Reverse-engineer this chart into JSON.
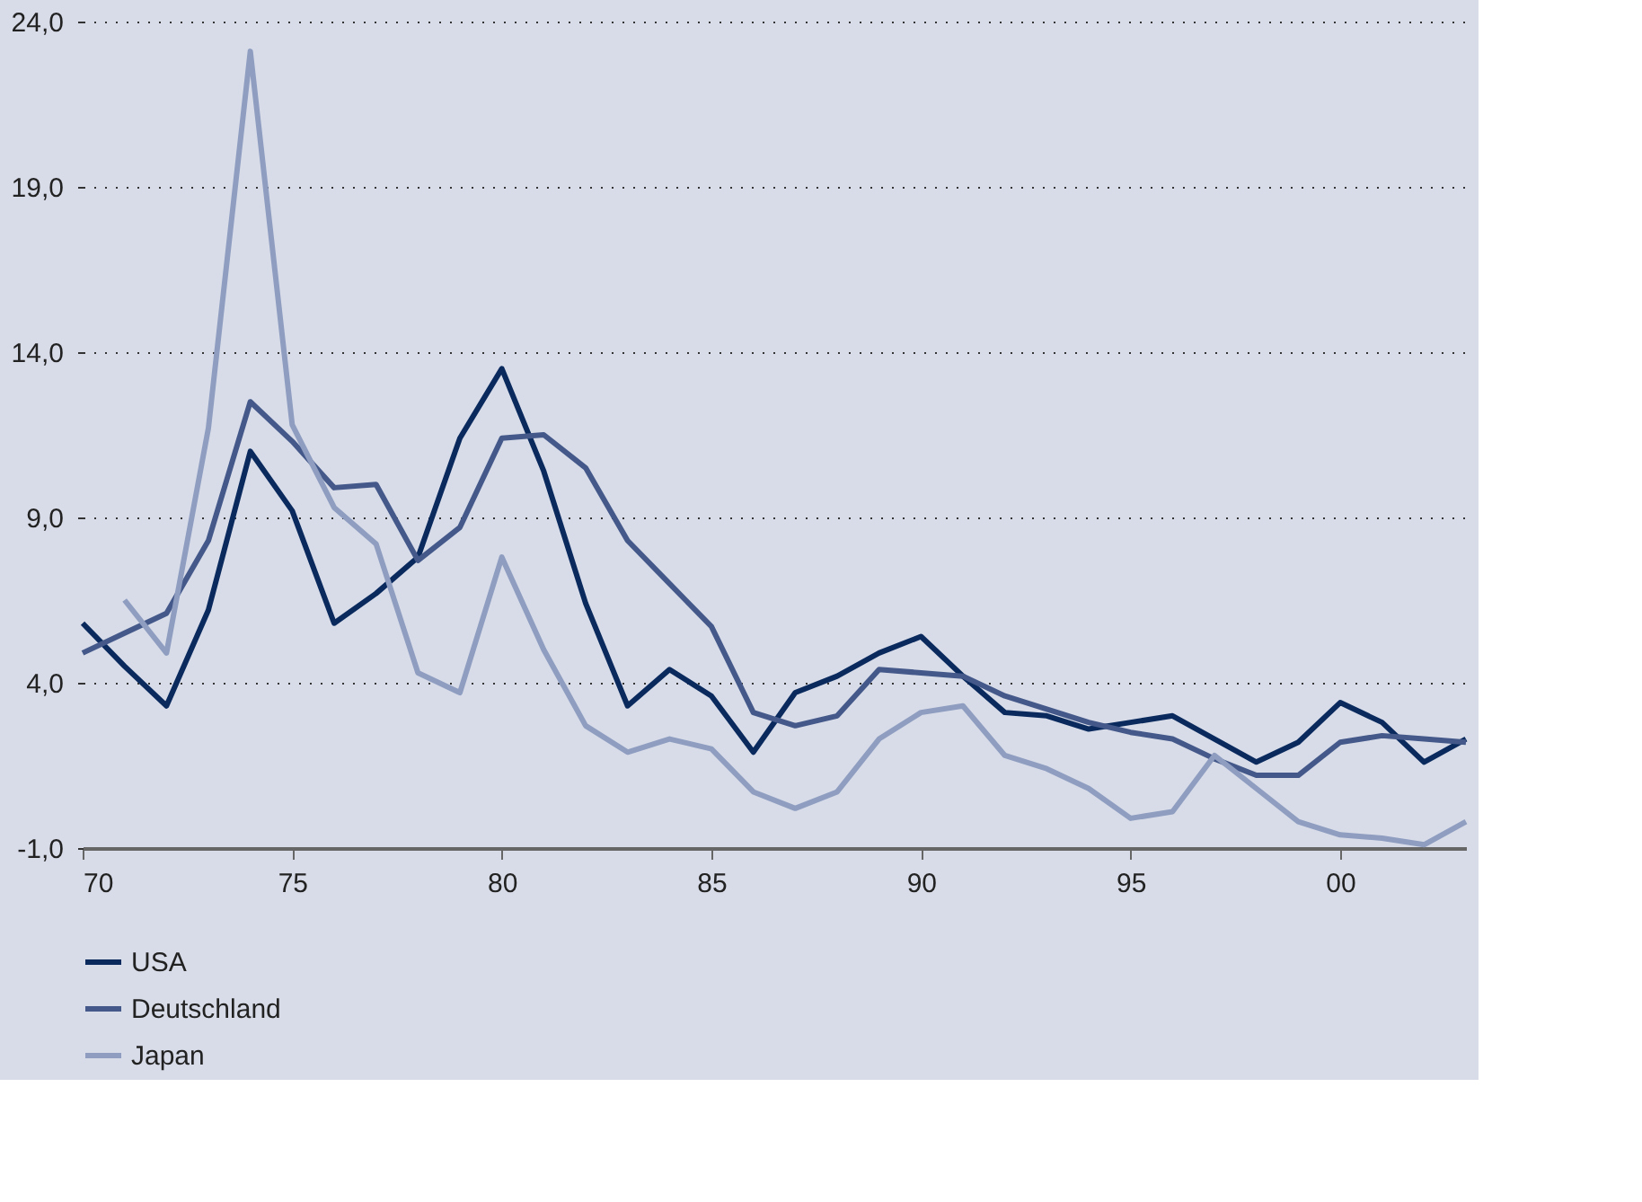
{
  "chart_data": {
    "type": "line",
    "x": [
      1970,
      1971,
      1972,
      1973,
      1974,
      1975,
      1976,
      1977,
      1978,
      1979,
      1980,
      1981,
      1982,
      1983,
      1984,
      1985,
      1986,
      1987,
      1988,
      1989,
      1990,
      1991,
      1992,
      1993,
      1994,
      1995,
      1996,
      1997,
      1998,
      1999,
      2000,
      2001,
      2002,
      2003
    ],
    "series": [
      {
        "name": "USA",
        "color": "#0a2a5e",
        "values": [
          5.8,
          4.5,
          3.3,
          6.2,
          11.0,
          9.2,
          5.8,
          6.7,
          7.8,
          11.4,
          13.5,
          10.4,
          6.4,
          3.3,
          4.4,
          3.6,
          1.9,
          3.7,
          4.2,
          4.9,
          5.4,
          4.2,
          3.1,
          3.0,
          2.6,
          2.8,
          3.0,
          2.3,
          1.6,
          2.2,
          3.4,
          2.8,
          1.6,
          2.3
        ]
      },
      {
        "name": "Deutschland",
        "color": "#44598a",
        "values": [
          4.9,
          5.5,
          6.1,
          8.3,
          12.5,
          11.3,
          9.9,
          10.0,
          7.7,
          8.7,
          11.4,
          11.5,
          10.5,
          8.3,
          7.0,
          5.7,
          3.1,
          2.7,
          3.0,
          4.4,
          4.3,
          4.2,
          3.6,
          3.2,
          2.8,
          2.5,
          2.3,
          1.7,
          1.2,
          1.2,
          2.2,
          2.4,
          2.3,
          2.2
        ]
      },
      {
        "name": "Japan",
        "color": "#8e9dc0",
        "values": [
          null,
          6.5,
          4.9,
          11.7,
          23.1,
          11.8,
          9.3,
          8.2,
          4.3,
          3.7,
          7.8,
          5.0,
          2.7,
          1.9,
          2.3,
          2.0,
          0.7,
          0.2,
          0.7,
          2.3,
          3.1,
          3.3,
          1.8,
          1.4,
          0.8,
          -0.1,
          0.1,
          1.8,
          0.8,
          -0.2,
          -0.6,
          -0.7,
          -0.9,
          -0.2
        ]
      }
    ],
    "xlim": [
      1970,
      2003
    ],
    "xticks": [
      {
        "value": 1970,
        "label": "70"
      },
      {
        "value": 1975,
        "label": "75"
      },
      {
        "value": 1980,
        "label": "80"
      },
      {
        "value": 1985,
        "label": "85"
      },
      {
        "value": 1990,
        "label": "90"
      },
      {
        "value": 1995,
        "label": "95"
      },
      {
        "value": 2000,
        "label": "00"
      }
    ],
    "ylim": [
      -1,
      24
    ],
    "yticks": [
      {
        "value": -1,
        "label": "-1,0"
      },
      {
        "value": 4,
        "label": "4,0"
      },
      {
        "value": 9,
        "label": "9,0"
      },
      {
        "value": 14,
        "label": "14,0"
      },
      {
        "value": 19,
        "label": "19,0"
      },
      {
        "value": 24,
        "label": "24,0"
      }
    ],
    "grid": "y",
    "legend": "bottom left",
    "marker": "none",
    "line_style": "solid"
  }
}
